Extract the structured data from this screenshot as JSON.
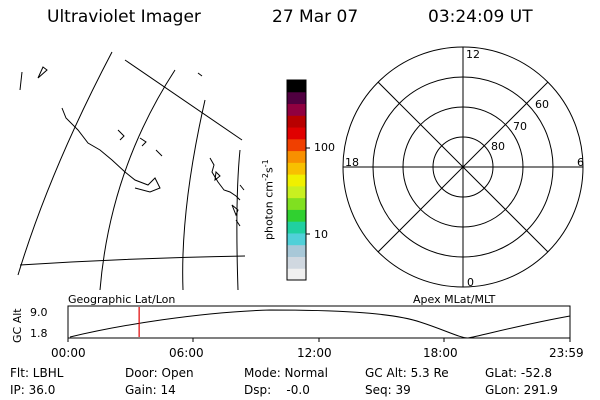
{
  "header": {
    "instrument": "Ultraviolet Imager",
    "date": "27 Mar 07",
    "time": "03:24:09 UT"
  },
  "colorbar": {
    "label_main": "photon cm",
    "label_exp1": "-2",
    "label_s": "s",
    "label_exp2": "-1",
    "ticks": [
      "100",
      "10"
    ],
    "colors": [
      "#f0f0f0",
      "#d0d8e0",
      "#a8c8d8",
      "#50d0d8",
      "#20d0a0",
      "#30d030",
      "#80e020",
      "#c8f020",
      "#f0f000",
      "#f8c000",
      "#f89000",
      "#f04000",
      "#e00000",
      "#b80000",
      "#900040",
      "#500040",
      "#000000"
    ]
  },
  "polar_plot": {
    "mlt_labels": [
      "12",
      "18",
      "6",
      "0"
    ],
    "lat_labels": [
      "60",
      "70",
      "80"
    ]
  },
  "timeline": {
    "ylabel": "GC Alt",
    "ytick_top": "9.0",
    "ytick_bottom": "1.8",
    "left_title": "Geographic Lat/Lon",
    "right_title": "Apex MLat/MLT",
    "xticks": [
      "00:00",
      "06:00",
      "12:00",
      "18:00",
      "23:59"
    ],
    "current_time_fraction": 0.1417,
    "marker_color": "#e00000"
  },
  "info": {
    "flt": "Flt: LBHL",
    "ip": "IP: 36.0",
    "door": "Door: Open",
    "gain": "Gain: 14",
    "mode": "Mode: Normal",
    "dsp": "Dsp:    -0.0",
    "gcalt": "GC Alt: 5.3 Re",
    "seq": "Seq: 39",
    "glat": "GLat: -52.8",
    "glon": "GLon: 291.9"
  }
}
